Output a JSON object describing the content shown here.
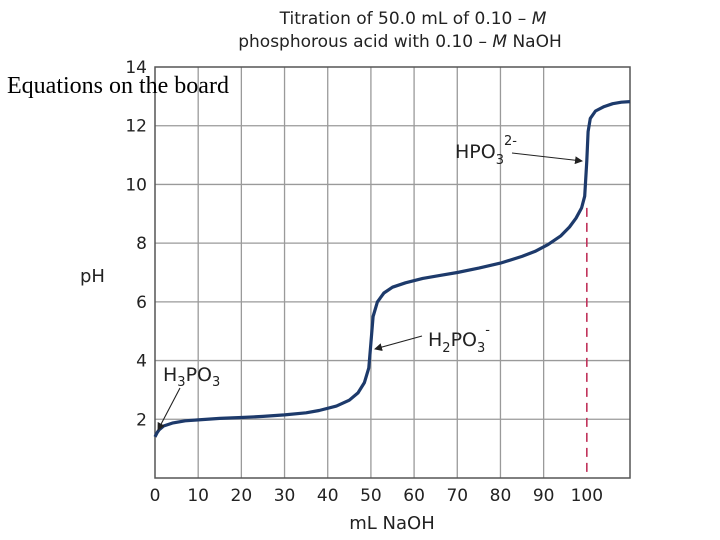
{
  "overlay_note": "Equations on the board",
  "chart_data": {
    "type": "line",
    "title_line1_a": "Titration of 50.0 mL of 0.10 – ",
    "title_line1_b": "M",
    "title_line2_a": "phosphorous acid with 0.10 – ",
    "title_line2_b": "M",
    "title_line2_c": " NaOH",
    "xlabel": "mL NaOH",
    "ylabel": "pH",
    "xlim": [
      0,
      110
    ],
    "ylim": [
      0,
      14
    ],
    "x_ticks": [
      0,
      10,
      20,
      30,
      40,
      50,
      60,
      70,
      80,
      90,
      100
    ],
    "x_tick_labels": [
      "0",
      "10",
      "20",
      "30",
      "40",
      "50",
      "60",
      "70",
      "80",
      "90",
      "100"
    ],
    "highlight_tick": "100",
    "y_ticks": [
      2,
      4,
      6,
      8,
      10,
      12,
      14
    ],
    "y_tick_labels": [
      "2",
      "4",
      "6",
      "8",
      "10",
      "12",
      "14"
    ],
    "grid": true,
    "colors": {
      "curve": "#1d3a6b",
      "grid": "#9a9a9a",
      "highlight": "#c0325a",
      "frame": "#555555"
    },
    "series": [
      {
        "x": [
          0,
          0.5,
          1,
          2,
          4,
          7,
          10,
          15,
          20,
          25,
          30,
          35,
          38,
          42,
          45,
          47,
          48.5,
          49.5,
          50,
          50.5,
          51.5,
          53,
          55,
          58,
          62,
          66,
          70,
          75,
          80,
          85,
          88,
          91,
          94,
          96,
          97.5,
          98.8,
          99.5,
          100,
          100.3,
          100.8,
          102,
          104,
          106,
          108,
          110
        ],
        "y": [
          1.4,
          1.55,
          1.65,
          1.77,
          1.87,
          1.95,
          1.98,
          2.03,
          2.06,
          2.1,
          2.15,
          2.22,
          2.3,
          2.45,
          2.65,
          2.9,
          3.25,
          3.75,
          4.6,
          5.5,
          6.0,
          6.3,
          6.5,
          6.65,
          6.8,
          6.9,
          7.0,
          7.15,
          7.32,
          7.55,
          7.72,
          7.95,
          8.25,
          8.55,
          8.85,
          9.2,
          9.6,
          10.8,
          11.8,
          12.25,
          12.5,
          12.65,
          12.75,
          12.8,
          12.82
        ]
      }
    ],
    "annotations": {
      "h3po3": {
        "base": "H",
        "sub1": "3",
        "mid": "PO",
        "sub2": "3",
        "x": 0.5,
        "y": 1.55
      },
      "h2po3": {
        "base": "H",
        "sub1": "2",
        "mid": "PO",
        "sub2": "3",
        "charge": "-",
        "x": 50,
        "y": 4.5
      },
      "hpo3": {
        "base": "HPO",
        "sub2": "3",
        "charge": "2-",
        "x": 100,
        "y": 11.1
      }
    },
    "equivalence_line_x": 100
  }
}
